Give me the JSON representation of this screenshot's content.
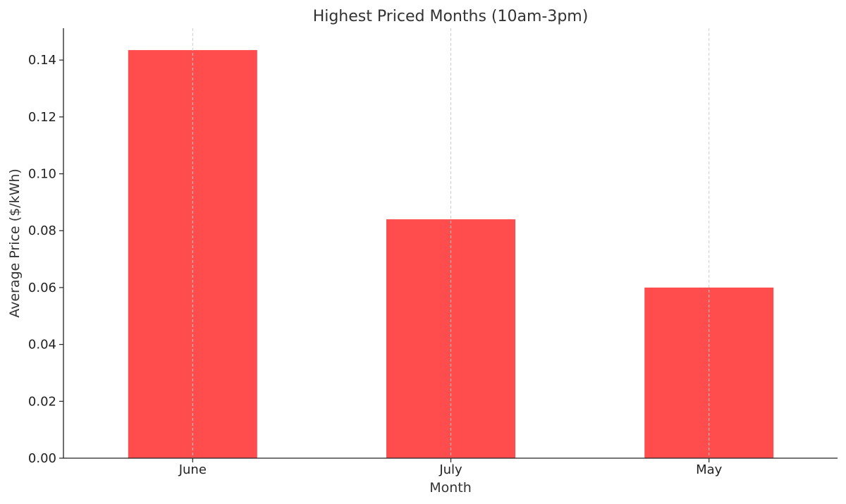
{
  "chart_data": {
    "type": "bar",
    "title": "Highest Priced Months (10am-3pm)",
    "xlabel": "Month",
    "ylabel": "Average Price ($/kWh)",
    "categories": [
      "June",
      "July",
      "May"
    ],
    "values": [
      0.1435,
      0.084,
      0.06
    ],
    "ylim": [
      0,
      0.1512
    ],
    "yticks": [
      "0.00",
      "0.02",
      "0.04",
      "0.06",
      "0.08",
      "0.10",
      "0.12",
      "0.14"
    ],
    "bar_color": "#ff4d4d",
    "grid": "vertical dashed, at categories",
    "legend": "none"
  }
}
